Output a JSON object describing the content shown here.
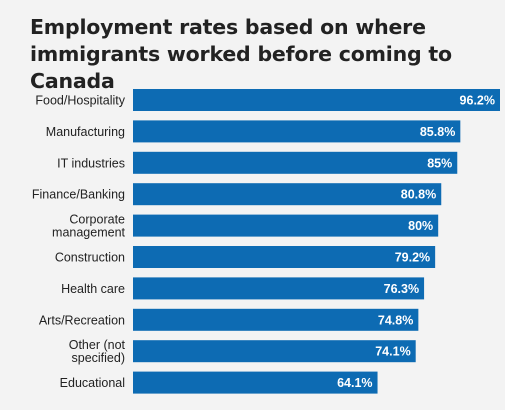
{
  "chart_data": {
    "type": "bar",
    "orientation": "horizontal",
    "title": "Employment rates based on where immigrants worked before coming to Canada",
    "categories": [
      [
        "Food/Hospitality"
      ],
      [
        "Manufacturing"
      ],
      [
        "IT industries"
      ],
      [
        "Finance/Banking"
      ],
      [
        "Corporate",
        "management"
      ],
      [
        "Construction"
      ],
      [
        "Health care"
      ],
      [
        "Arts/Recreation"
      ],
      [
        "Other (not",
        "specified)"
      ],
      [
        "Educational"
      ]
    ],
    "values": [
      96.2,
      85.8,
      85,
      80.8,
      80,
      79.2,
      76.3,
      74.8,
      74.1,
      64.1
    ],
    "value_labels": [
      "96.2%",
      "85.8%",
      "85%",
      "80.8%",
      "80%",
      "79.2%",
      "76.3%",
      "74.8%",
      "74.1%",
      "64.1%"
    ],
    "xlim": [
      0,
      96.2
    ],
    "bar_color": "#0d6bb3",
    "background_color": "#f3f3f3"
  }
}
